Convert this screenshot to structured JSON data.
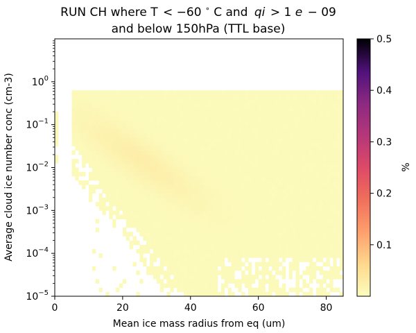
{
  "chart_data": {
    "type": "heatmap",
    "title_line1_prefix": "RUN CH where T",
    "title_line1_cond1": "< −60",
    "title_line1_deg": "∘",
    "title_line1_unit": "C and",
    "title_line1_var": "qi",
    "title_line1_cond2": "> 1",
    "title_line1_cond2_var": "e",
    "title_line1_cond2_end": "− 09",
    "title_line2": "and below 150hPa (TTL base)",
    "xlabel": "Mean ice mass radius from eq (um)",
    "ylabel": "Average cloud ice number conc (cm-3)",
    "xlim": [
      0,
      85
    ],
    "ylim": [
      1e-05,
      10
    ],
    "yscale": "log",
    "grid": false,
    "x_ticks": [
      "0",
      "20",
      "40",
      "60",
      "80"
    ],
    "x_tick_values": [
      0,
      20,
      40,
      60,
      80
    ],
    "y_ticks": [
      {
        "base": "10",
        "exp": "0",
        "value": 1
      },
      {
        "base": "10",
        "exp": "−1",
        "value": 0.1
      },
      {
        "base": "10",
        "exp": "−2",
        "value": 0.01
      },
      {
        "base": "10",
        "exp": "−3",
        "value": 0.001
      },
      {
        "base": "10",
        "exp": "−4",
        "value": 0.0001
      },
      {
        "base": "10",
        "exp": "−5",
        "value": 1e-05
      }
    ],
    "colorbar": {
      "label": "%",
      "min": 0.0,
      "max": 0.5,
      "colormap": "magma_r",
      "ticks": [
        "0.1",
        "0.2",
        "0.3",
        "0.4",
        "0.5"
      ],
      "tick_values": [
        0.1,
        0.2,
        0.3,
        0.4,
        0.5
      ]
    },
    "data_region": {
      "x_range": [
        0,
        85
      ],
      "y_range": [
        1e-05,
        0.6
      ],
      "peak_x": 25,
      "peak_y": 0.02,
      "peak_value": 0.025,
      "background_value": 0.004
    }
  }
}
